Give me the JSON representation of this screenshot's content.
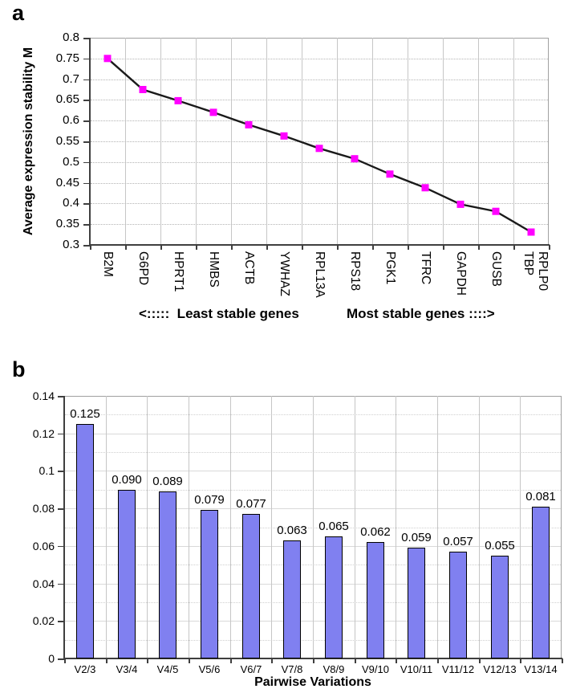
{
  "figure": {
    "panel_a_letter": "a",
    "panel_b_letter": "b"
  },
  "colors": {
    "background": "#ffffff",
    "grid_line": "#c6c6c6",
    "grid_dotted": "#b3b3b3",
    "grid_major": "#d9d9d9",
    "grid_dotted_b": "#cfcfcf",
    "plot_border": "#a0a0a0",
    "axis": "#3f3f3f",
    "text": "#000000"
  },
  "chart_data": [
    {
      "type": "line",
      "panel": "a",
      "ylabel": "Average expression stability M",
      "annotation_left": "<:::::  Least stable genes",
      "annotation_right": "Most stable genes ::::>",
      "categories": [
        "B2M",
        "G6PD",
        "HPRT1",
        "HMBS",
        "ACTB",
        "YWHAZ",
        "RPL13A",
        "RPS18",
        "PGK1",
        "TFRC",
        "GAPDH",
        "GUSB",
        "TBP",
        "RPLP0"
      ],
      "note": "TBP and RPLP0 share the final (most stable) data point",
      "values": [
        0.75,
        0.675,
        0.648,
        0.62,
        0.59,
        0.563,
        0.533,
        0.508,
        0.471,
        0.438,
        0.398,
        0.381,
        0.331
      ],
      "ylim": [
        0.3,
        0.8
      ],
      "ytick_step": 0.05,
      "yticks": [
        "0.8",
        "0.75",
        "0.7",
        "0.65",
        "0.6",
        "0.55",
        "0.5",
        "0.45",
        "0.4",
        "0.35",
        "0.3"
      ],
      "grid": true,
      "legend": "none",
      "line_color": "#1a1a1a",
      "marker_color": "#ff00ff",
      "marker_shape": "square"
    },
    {
      "type": "bar",
      "panel": "b",
      "xlabel": "Pairwise Variations",
      "categories": [
        "V2/3",
        "V3/4",
        "V4/5",
        "V5/6",
        "V6/7",
        "V7/8",
        "V8/9",
        "V9/10",
        "V10/11",
        "V11/12",
        "V12/13",
        "V13/14"
      ],
      "values": [
        0.125,
        0.09,
        0.089,
        0.079,
        0.077,
        0.063,
        0.065,
        0.062,
        0.059,
        0.057,
        0.055,
        0.081
      ],
      "value_labels": [
        "0.125",
        "0.090",
        "0.089",
        "0.079",
        "0.077",
        "0.063",
        "0.065",
        "0.062",
        "0.059",
        "0.057",
        "0.055",
        "0.081"
      ],
      "ylim": [
        0,
        0.14
      ],
      "ytick_step": 0.02,
      "yticks": [
        "0.14",
        "0.12",
        "0.1",
        "0.08",
        "0.06",
        "0.04",
        "0.02",
        "0"
      ],
      "grid": true,
      "legend": "none",
      "bar_color": "#8080f0",
      "bar_border": "#000000"
    }
  ]
}
